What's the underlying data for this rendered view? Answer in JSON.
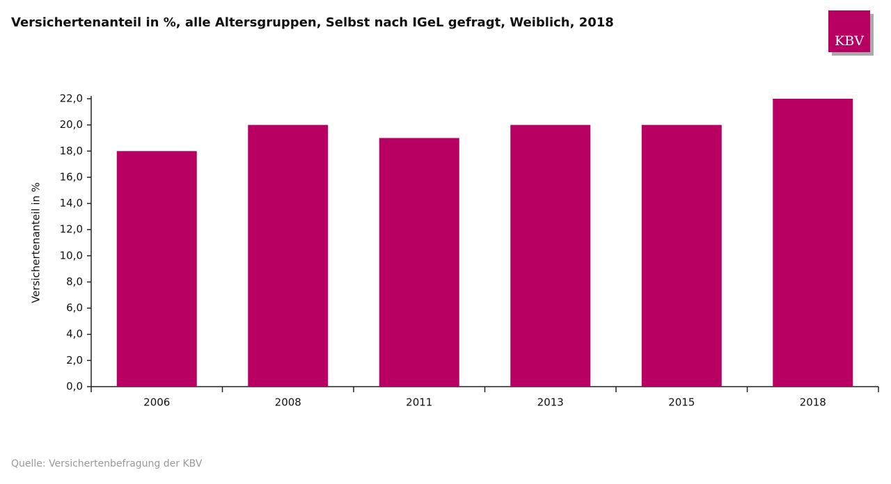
{
  "chart_data": {
    "type": "bar",
    "title": "Versichertenanteil in %, alle Altersgruppen, Selbst nach IGeL gefragt, Weiblich, 2018",
    "y_label": "Versichertenanteil in %",
    "categories": [
      "2006",
      "2008",
      "2011",
      "2013",
      "2015",
      "2018"
    ],
    "values": [
      18,
      20,
      19,
      20,
      20,
      22
    ],
    "color": "#b80062",
    "ylim": [
      0,
      22
    ],
    "yticks": [
      {
        "value": 0,
        "label": "0,0"
      },
      {
        "value": 2,
        "label": "2,0"
      },
      {
        "value": 4,
        "label": "4,0"
      },
      {
        "value": 6,
        "label": "6,0"
      },
      {
        "value": 8,
        "label": "8,0"
      },
      {
        "value": 10,
        "label": "10,0"
      },
      {
        "value": 12,
        "label": "12,0"
      },
      {
        "value": 14,
        "label": "14,0"
      },
      {
        "value": 16,
        "label": "16,0"
      },
      {
        "value": 18,
        "label": "18,0"
      },
      {
        "value": 20,
        "label": "20,0"
      },
      {
        "value": 22,
        "label": "22,0"
      }
    ],
    "grid": false,
    "source": "Quelle: Versichertenbefragung der KBV",
    "logo": "KBV"
  }
}
